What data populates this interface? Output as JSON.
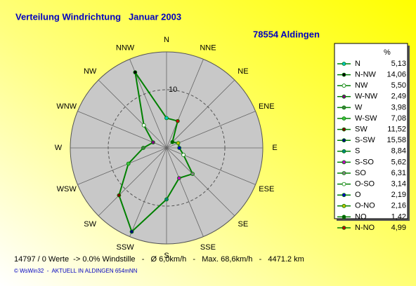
{
  "chart_data": {
    "type": "radar",
    "title": "Verteilung Windrichtung   Januar 2003",
    "subtitle": "78554 Aldingen",
    "direction_labels": [
      "N",
      "NNE",
      "NE",
      "ENE",
      "E",
      "ESE",
      "SE",
      "SSE",
      "S",
      "SSW",
      "SW",
      "WSW",
      "W",
      "WNW",
      "NW",
      "NNW"
    ],
    "legend_title": "%",
    "categories": [
      "N",
      "N-NW",
      "NW",
      "W-NW",
      "W",
      "W-SW",
      "SW",
      "S-SW",
      "S",
      "S-SO",
      "SO",
      "O-SO",
      "O",
      "O-NO",
      "NO",
      "N-NO"
    ],
    "values": [
      5.13,
      14.06,
      5.5,
      2.49,
      3.98,
      7.08,
      11.52,
      15.58,
      8.84,
      5.62,
      6.31,
      3.14,
      2.19,
      2.16,
      1.42,
      4.99
    ],
    "value_labels": [
      "5,13",
      "14,06",
      "5,50",
      "2,49",
      "3,98",
      "7,08",
      "11,52",
      "15,58",
      "8,84",
      "5,62",
      "6,31",
      "3,14",
      "2,19",
      "2,16",
      "1,42",
      "4,99"
    ],
    "colors": [
      "#00c0c0",
      "#000000",
      "#ffffff",
      "#800080",
      "#408040",
      "#40c040",
      "#800000",
      "#000080",
      "#008080",
      "#c000c0",
      "#808080",
      "#ffffff",
      "#0000c0",
      "#c0c000",
      "#006000",
      "#c00000"
    ],
    "line_color": "#008000",
    "rlim": [
      0,
      16.5
    ],
    "rticks": [
      10
    ],
    "footer": "14797 / 0 Werte  -> 0.0% Windstille   -   Ø 6,0km/h   -   Max. 68,6km/h   -   4471.2 km",
    "credit": "© WsWin32  -  AKTUELL IN ALDINGEN 654mNN"
  }
}
